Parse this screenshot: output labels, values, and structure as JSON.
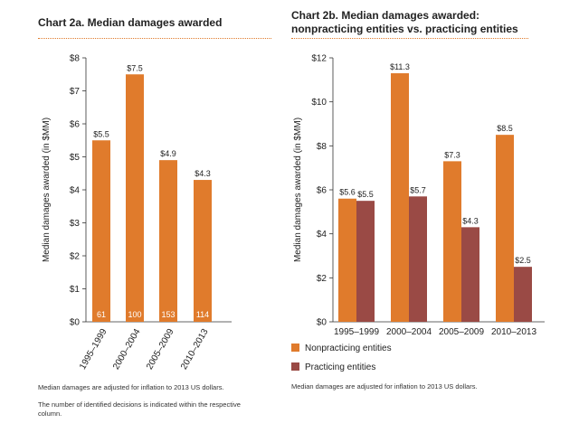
{
  "colors": {
    "orange": "#e07b2c",
    "maroon": "#9a4a45",
    "axis": "#333333"
  },
  "panel_a": {
    "title": "Chart 2a. Median damages awarded",
    "notes": [
      "Median damages are adjusted for inflation to 2013 US dollars.",
      "The number of identified decisions is indicated within the respective column."
    ]
  },
  "panel_b": {
    "title_line1": "Chart 2b. Median damages awarded:",
    "title_line2": "nonpracticing entities vs. practicing entities",
    "notes": [
      "Median damages are adjusted for inflation to 2013 US dollars."
    ]
  },
  "chart_data": [
    {
      "type": "bar",
      "title": "Chart 2a. Median damages awarded",
      "categories": [
        "1995–1999",
        "2000–2004",
        "2005–2009",
        "2010–2013"
      ],
      "values": [
        5.5,
        7.5,
        4.9,
        4.3
      ],
      "value_labels": [
        "$5.5",
        "$7.5",
        "$4.9",
        "$4.3"
      ],
      "counts": [
        "61",
        "100",
        "153",
        "114"
      ],
      "ylabel": "Median damages awarded (in $MM)",
      "ylim": [
        0,
        8
      ],
      "yticks": [
        0,
        1,
        2,
        3,
        4,
        5,
        6,
        7,
        8
      ],
      "ytick_labels": [
        "$0",
        "$1",
        "$2",
        "$3",
        "$4",
        "$5",
        "$6",
        "$7",
        "$8"
      ],
      "grid": false
    },
    {
      "type": "bar",
      "title": "Chart 2b. Median damages awarded: nonpracticing entities vs. practicing entities",
      "categories": [
        "1995–1999",
        "2000–2004",
        "2005–2009",
        "2010–2013"
      ],
      "series": [
        {
          "name": "Nonpracticing entities",
          "values": [
            5.6,
            11.3,
            7.3,
            8.5
          ],
          "labels": [
            "$5.6",
            "$11.3",
            "$7.3",
            "$8.5"
          ],
          "color": "#e07b2c"
        },
        {
          "name": "Practicing entities",
          "values": [
            5.5,
            5.7,
            4.3,
            2.5
          ],
          "labels": [
            "$5.5",
            "$5.7",
            "$4.3",
            "$2.5"
          ],
          "color": "#9a4a45"
        }
      ],
      "ylabel": "Median damages awarded (in $MM)",
      "ylim": [
        0,
        12
      ],
      "yticks": [
        0,
        2,
        4,
        6,
        8,
        10,
        12
      ],
      "ytick_labels": [
        "$0",
        "$2",
        "$4",
        "$6",
        "$8",
        "$10",
        "$12"
      ],
      "legend_position": "bottom-left",
      "grid": false
    }
  ]
}
